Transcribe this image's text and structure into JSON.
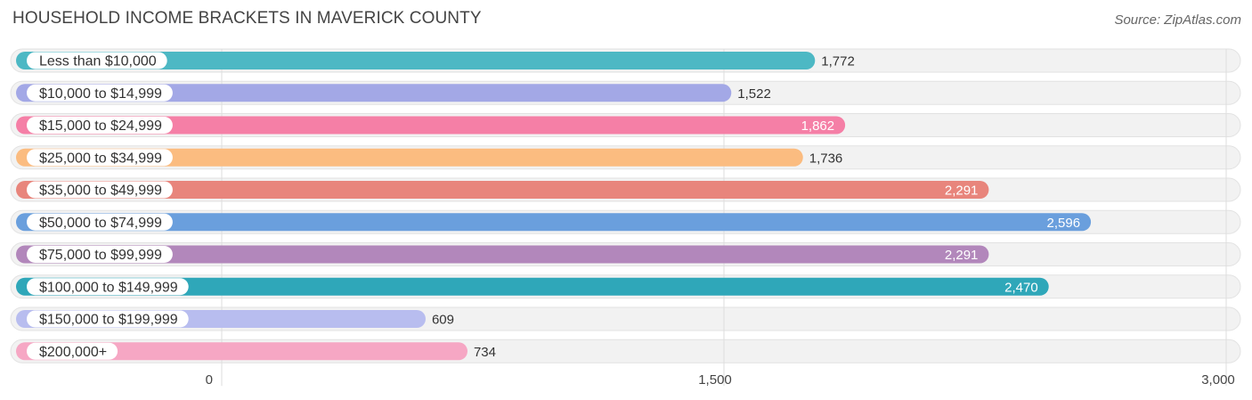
{
  "chart_data": {
    "type": "bar",
    "orientation": "horizontal",
    "title": "HOUSEHOLD INCOME BRACKETS IN MAVERICK COUNTY",
    "source": "Source: ZipAtlas.com",
    "categories": [
      "Less than $10,000",
      "$10,000 to $14,999",
      "$15,000 to $24,999",
      "$25,000 to $34,999",
      "$35,000 to $49,999",
      "$50,000 to $74,999",
      "$75,000 to $99,999",
      "$100,000 to $149,999",
      "$150,000 to $199,999",
      "$200,000+"
    ],
    "values": [
      1772,
      1522,
      1862,
      1736,
      2291,
      2596,
      2291,
      2470,
      609,
      734
    ],
    "value_labels": [
      "1,772",
      "1,522",
      "1,862",
      "1,736",
      "2,291",
      "2,596",
      "2,291",
      "2,470",
      "609",
      "734"
    ],
    "colors": [
      "#4db8c4",
      "#a3a8e6",
      "#f57fa6",
      "#fbbc80",
      "#e8857c",
      "#6a9fdd",
      "#b287bb",
      "#2fa7b9",
      "#b8bdef",
      "#f6a7c4"
    ],
    "xlim": [
      0,
      3000
    ],
    "xticks": [
      0,
      1500,
      3000
    ],
    "xtick_labels": [
      "0",
      "1,500",
      "3,000"
    ],
    "xlabel": "",
    "ylabel": "",
    "grid": true,
    "legend": "none"
  }
}
